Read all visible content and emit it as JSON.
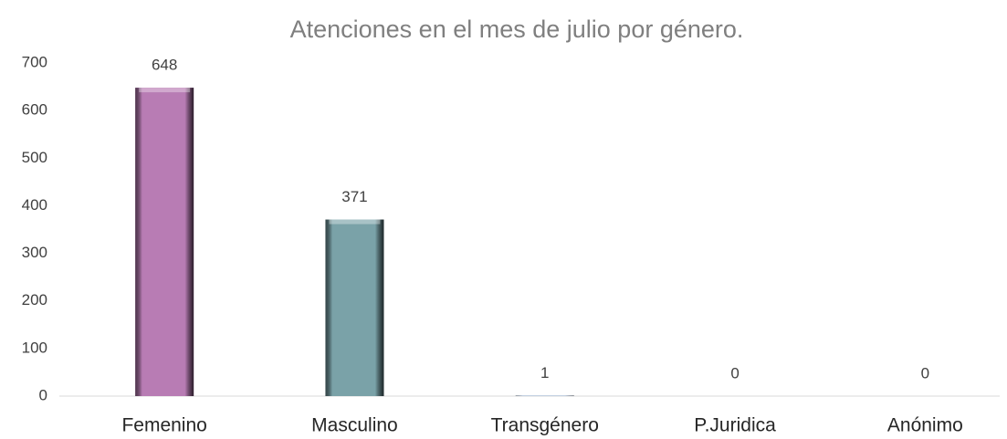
{
  "chart_data": {
    "type": "bar",
    "title": "Atenciones en el mes de julio por género.",
    "categories": [
      "Femenino",
      "Masculino",
      "Transgénero",
      "P.Juridica",
      "Anónimo"
    ],
    "values": [
      648,
      371,
      1,
      0,
      0
    ],
    "colors": [
      "#b87cb4",
      "#7aa2a8",
      "#8fa9c9",
      "#a9c08a",
      "#c9a36f"
    ],
    "ylim": [
      0,
      700
    ],
    "yticks": [
      0,
      100,
      200,
      300,
      400,
      500,
      600,
      700
    ],
    "grid": false
  }
}
